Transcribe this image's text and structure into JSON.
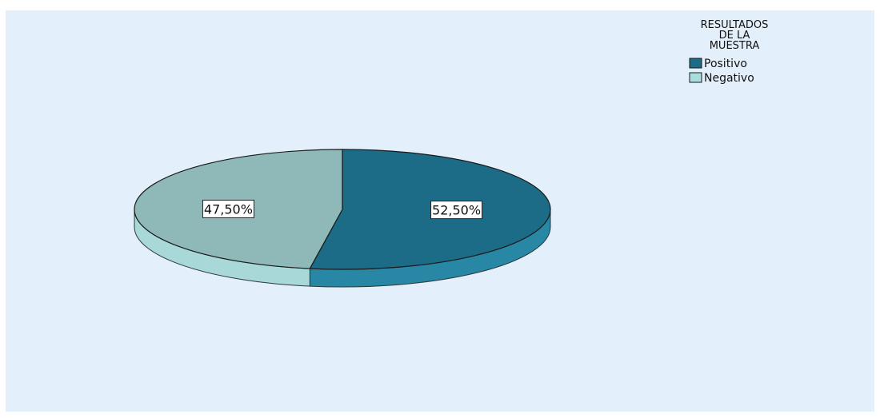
{
  "chart_data": {
    "type": "pie",
    "legend": {
      "title_lines": [
        "RESULTADOS",
        "DE LA",
        "MUESTRA"
      ],
      "placement": "top-right"
    },
    "slices": [
      {
        "name": "Positivo",
        "value": 52.5,
        "label": "52,50%",
        "top_color": "#1c6b87",
        "side_color": "#2787a5",
        "legend_color": "#1c6b87"
      },
      {
        "name": "Negativo",
        "value": 47.5,
        "label": "47,50%",
        "top_color": "#8fb8b8",
        "side_color": "#a8d8d8",
        "legend_color": "#a9dedd"
      }
    ],
    "start_angle_deg": -90,
    "direction": "clockwise",
    "style": "3d"
  }
}
